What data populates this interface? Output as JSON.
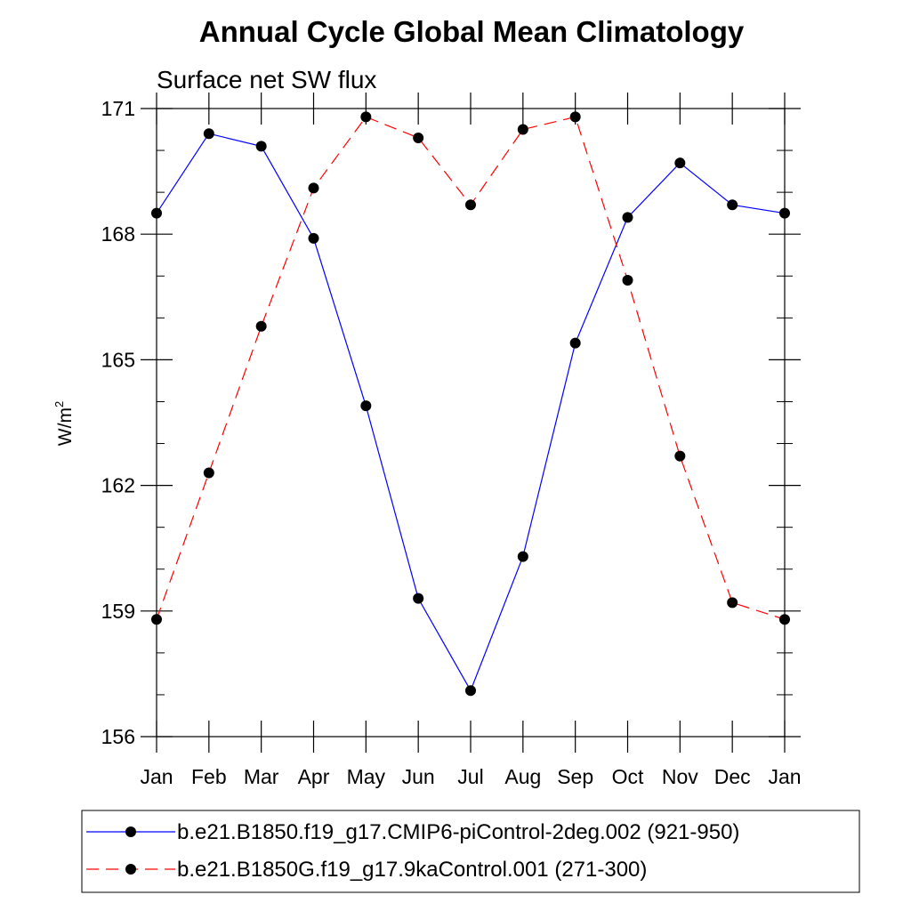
{
  "chart_data": {
    "type": "line",
    "title": "Annual Cycle Global Mean Climatology",
    "subtitle": "Surface net SW flux",
    "ylabel_base": "W/m",
    "ylabel_sup": "2",
    "xlabel": "",
    "categories": [
      "Jan",
      "Feb",
      "Mar",
      "Apr",
      "May",
      "Jun",
      "Jul",
      "Aug",
      "Sep",
      "Oct",
      "Nov",
      "Dec",
      "Jan"
    ],
    "ylim": [
      156,
      171
    ],
    "yticks": [
      156,
      159,
      162,
      165,
      168,
      171
    ],
    "ytick_labels": [
      "156",
      "159",
      "162",
      "165",
      "168",
      "171"
    ],
    "grid": false,
    "legend_position": "bottom",
    "series": [
      {
        "name": "b.e21.B1850.f19_g17.CMIP6-piControl-2deg.002 (921-950)",
        "color": "#0000ff",
        "dash": "solid",
        "values": [
          168.5,
          170.4,
          170.1,
          167.9,
          163.9,
          159.3,
          157.1,
          160.3,
          165.4,
          168.4,
          169.7,
          168.7,
          168.5
        ]
      },
      {
        "name": "b.e21.B1850G.f19_g17.9kaControl.001 (271-300)",
        "color": "#ff0000",
        "dash": "dashed",
        "values": [
          158.8,
          162.3,
          165.8,
          169.1,
          170.8,
          170.3,
          168.7,
          170.5,
          170.8,
          166.9,
          162.7,
          159.2,
          158.8
        ]
      }
    ]
  }
}
